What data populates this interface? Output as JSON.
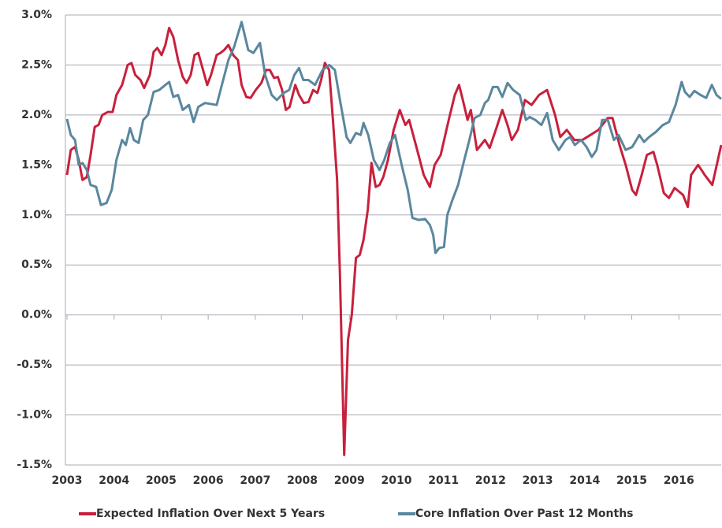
{
  "chart_data": {
    "type": "line",
    "xlim": [
      2003,
      2016.9
    ],
    "xticks": [
      2003,
      2004,
      2005,
      2006,
      2007,
      2008,
      2009,
      2010,
      2011,
      2012,
      2013,
      2014,
      2015,
      2016
    ],
    "ylim": [
      -1.5,
      3.0
    ],
    "yticks": [
      {
        "value": -1.5,
        "label": "-1.5%"
      },
      {
        "value": -1.0,
        "label": "-1.0%"
      },
      {
        "value": -0.5,
        "label": "-0.5%"
      },
      {
        "value": 0,
        "label": "0.0%"
      },
      {
        "value": 0.5,
        "label": "0.5%"
      },
      {
        "value": 1.0,
        "label": "1.0%"
      },
      {
        "value": 1.5,
        "label": "1.5%"
      },
      {
        "value": 2.0,
        "label": "2.0%"
      },
      {
        "value": 2.5,
        "label": "2.5%"
      },
      {
        "value": 3.0,
        "label": "3.0%"
      }
    ],
    "grid": true,
    "legend": "bottom",
    "series": [
      {
        "name": "Expected Inflation Over Next 5 Years",
        "color": "#c8203c",
        "x": [
          2003.0,
          2003.08,
          2003.17,
          2003.25,
          2003.33,
          2003.42,
          2003.5,
          2003.59,
          2003.67,
          2003.75,
          2003.87,
          2003.97,
          2004.05,
          2004.17,
          2004.29,
          2004.37,
          2004.45,
          2004.56,
          2004.64,
          2004.76,
          2004.84,
          2004.92,
          2005.01,
          2005.09,
          2005.17,
          2005.26,
          2005.36,
          2005.46,
          2005.54,
          2005.63,
          2005.71,
          2005.79,
          2005.89,
          2005.98,
          2006.06,
          2006.18,
          2006.26,
          2006.34,
          2006.43,
          2006.53,
          2006.63,
          2006.71,
          2006.81,
          2006.9,
          2007.01,
          2007.13,
          2007.23,
          2007.31,
          2007.4,
          2007.48,
          2007.57,
          2007.65,
          2007.73,
          2007.85,
          2007.93,
          2008.03,
          2008.13,
          2008.23,
          2008.32,
          2008.4,
          2008.48,
          2008.57,
          2008.65,
          2008.74,
          2008.8,
          2008.89,
          2008.97,
          2009.05,
          2009.14,
          2009.22,
          2009.3,
          2009.39,
          2009.47,
          2009.56,
          2009.64,
          2009.72,
          2009.82,
          2009.94,
          2010.07,
          2010.19,
          2010.27,
          2010.44,
          2010.58,
          2010.71,
          2010.81,
          2010.94,
          2011.11,
          2011.24,
          2011.33,
          2011.41,
          2011.51,
          2011.58,
          2011.71,
          2011.88,
          2011.98,
          2012.11,
          2012.25,
          2012.36,
          2012.45,
          2012.58,
          2012.73,
          2012.87,
          2013.03,
          2013.2,
          2013.37,
          2013.48,
          2013.62,
          2013.78,
          2013.95,
          2014.12,
          2014.29,
          2014.49,
          2014.59,
          2014.74,
          2014.87,
          2015.01,
          2015.09,
          2015.21,
          2015.32,
          2015.46,
          2015.54,
          2015.68,
          2015.79,
          2015.91,
          2016.09,
          2016.19,
          2016.26,
          2016.41,
          2016.55,
          2016.71,
          2016.9
        ],
        "values": [
          1.4,
          1.65,
          1.68,
          1.55,
          1.35,
          1.38,
          1.6,
          1.88,
          1.9,
          2.0,
          2.03,
          2.03,
          2.2,
          2.3,
          2.5,
          2.52,
          2.4,
          2.35,
          2.27,
          2.4,
          2.63,
          2.67,
          2.6,
          2.7,
          2.87,
          2.78,
          2.55,
          2.38,
          2.32,
          2.4,
          2.6,
          2.62,
          2.45,
          2.3,
          2.4,
          2.6,
          2.62,
          2.65,
          2.7,
          2.6,
          2.55,
          2.3,
          2.18,
          2.17,
          2.25,
          2.32,
          2.45,
          2.45,
          2.37,
          2.38,
          2.25,
          2.05,
          2.08,
          2.3,
          2.2,
          2.12,
          2.13,
          2.25,
          2.22,
          2.35,
          2.52,
          2.45,
          1.95,
          1.35,
          0.4,
          -1.4,
          -0.25,
          0.0,
          0.57,
          0.6,
          0.75,
          1.05,
          1.52,
          1.28,
          1.3,
          1.38,
          1.55,
          1.85,
          2.05,
          1.9,
          1.95,
          1.65,
          1.4,
          1.28,
          1.5,
          1.6,
          1.95,
          2.2,
          2.3,
          2.15,
          1.95,
          2.05,
          1.65,
          1.75,
          1.67,
          1.85,
          2.05,
          1.9,
          1.75,
          1.85,
          2.15,
          2.1,
          2.2,
          2.25,
          2.0,
          1.78,
          1.85,
          1.75,
          1.75,
          1.8,
          1.85,
          1.97,
          1.97,
          1.7,
          1.5,
          1.25,
          1.2,
          1.4,
          1.6,
          1.63,
          1.5,
          1.22,
          1.17,
          1.27,
          1.2,
          1.08,
          1.4,
          1.5,
          1.4,
          1.3,
          1.7
        ]
      },
      {
        "name": "Core Inflation Over Past 12 Months",
        "color": "#5a879e",
        "x": [
          2003.0,
          2003.08,
          2003.17,
          2003.25,
          2003.33,
          2003.42,
          2003.5,
          2003.62,
          2003.72,
          2003.84,
          2003.95,
          2004.05,
          2004.17,
          2004.25,
          2004.34,
          2004.42,
          2004.52,
          2004.62,
          2004.72,
          2004.84,
          2004.96,
          2005.09,
          2005.17,
          2005.26,
          2005.36,
          2005.46,
          2005.59,
          2005.69,
          2005.79,
          2005.93,
          2006.18,
          2006.29,
          2006.43,
          2006.55,
          2006.71,
          2006.85,
          2006.96,
          2007.1,
          2007.21,
          2007.35,
          2007.46,
          2007.6,
          2007.72,
          2007.83,
          2007.93,
          2008.02,
          2008.13,
          2008.27,
          2008.43,
          2008.57,
          2008.69,
          2008.8,
          2008.94,
          2009.02,
          2009.14,
          2009.24,
          2009.3,
          2009.4,
          2009.52,
          2009.64,
          2009.74,
          2009.86,
          2009.97,
          2010.11,
          2010.24,
          2010.34,
          2010.47,
          2010.61,
          2010.71,
          2010.78,
          2010.83,
          2010.91,
          2011.01,
          2011.08,
          2011.19,
          2011.31,
          2011.44,
          2011.55,
          2011.66,
          2011.78,
          2011.88,
          2011.95,
          2012.05,
          2012.15,
          2012.25,
          2012.36,
          2012.48,
          2012.62,
          2012.75,
          2012.83,
          2012.95,
          2013.08,
          2013.2,
          2013.32,
          2013.45,
          2013.59,
          2013.69,
          2013.79,
          2013.92,
          2014.04,
          2014.15,
          2014.25,
          2014.37,
          2014.49,
          2014.62,
          2014.72,
          2014.87,
          2015.01,
          2015.16,
          2015.26,
          2015.37,
          2015.51,
          2015.66,
          2015.79,
          2015.93,
          2016.06,
          2016.13,
          2016.23,
          2016.33,
          2016.46,
          2016.58,
          2016.7,
          2016.8,
          2016.9
        ],
        "values": [
          1.96,
          1.8,
          1.75,
          1.5,
          1.52,
          1.45,
          1.3,
          1.28,
          1.1,
          1.12,
          1.25,
          1.55,
          1.75,
          1.7,
          1.87,
          1.75,
          1.72,
          1.95,
          2.0,
          2.23,
          2.25,
          2.3,
          2.33,
          2.18,
          2.2,
          2.05,
          2.1,
          1.93,
          2.08,
          2.12,
          2.1,
          2.3,
          2.55,
          2.68,
          2.93,
          2.65,
          2.62,
          2.72,
          2.4,
          2.2,
          2.15,
          2.22,
          2.25,
          2.4,
          2.47,
          2.35,
          2.35,
          2.3,
          2.45,
          2.5,
          2.45,
          2.15,
          1.78,
          1.72,
          1.82,
          1.8,
          1.92,
          1.8,
          1.55,
          1.45,
          1.55,
          1.72,
          1.8,
          1.5,
          1.25,
          0.97,
          0.95,
          0.96,
          0.9,
          0.8,
          0.62,
          0.67,
          0.68,
          1.0,
          1.15,
          1.3,
          1.55,
          1.75,
          1.97,
          2.0,
          2.12,
          2.15,
          2.28,
          2.28,
          2.18,
          2.32,
          2.25,
          2.2,
          1.95,
          1.98,
          1.95,
          1.9,
          2.02,
          1.75,
          1.65,
          1.75,
          1.78,
          1.7,
          1.75,
          1.68,
          1.58,
          1.65,
          1.95,
          1.95,
          1.75,
          1.8,
          1.65,
          1.68,
          1.8,
          1.73,
          1.78,
          1.83,
          1.9,
          1.93,
          2.1,
          2.33,
          2.23,
          2.18,
          2.24,
          2.2,
          2.17,
          2.3,
          2.2,
          2.16
        ]
      }
    ]
  }
}
